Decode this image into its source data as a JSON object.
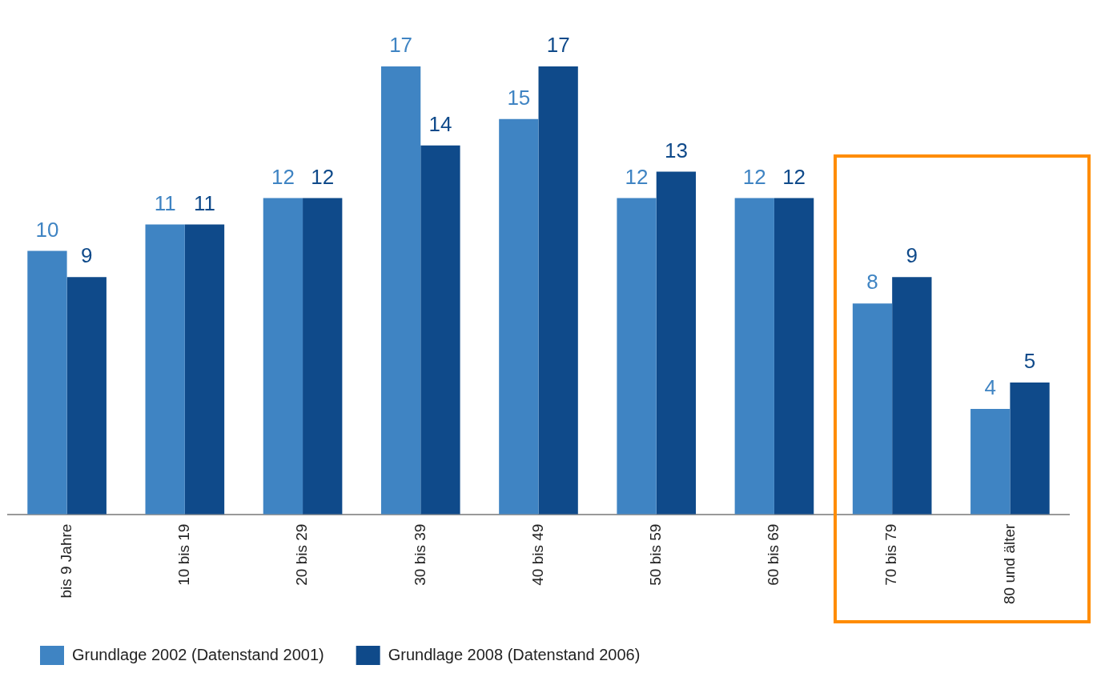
{
  "chart_data": {
    "type": "bar",
    "categories": [
      "bis 9 Jahre",
      "10 bis 19",
      "20 bis 29",
      "30 bis 39",
      "40 bis 49",
      "50 bis 59",
      "60 bis 69",
      "70 bis 79",
      "80 und älter"
    ],
    "series": [
      {
        "name": "Grundlage 2002 (Datenstand 2001)",
        "color": "#3f84c3",
        "values": [
          10,
          11,
          12,
          17,
          15,
          12,
          12,
          8,
          4
        ]
      },
      {
        "name": "Grundlage 2008 (Datenstand 2006)",
        "color": "#0f4a8a",
        "values": [
          9,
          11,
          12,
          14,
          17,
          13,
          12,
          9,
          5
        ]
      }
    ],
    "data_labels": true,
    "legend": "bottom",
    "grid": false
  }
}
